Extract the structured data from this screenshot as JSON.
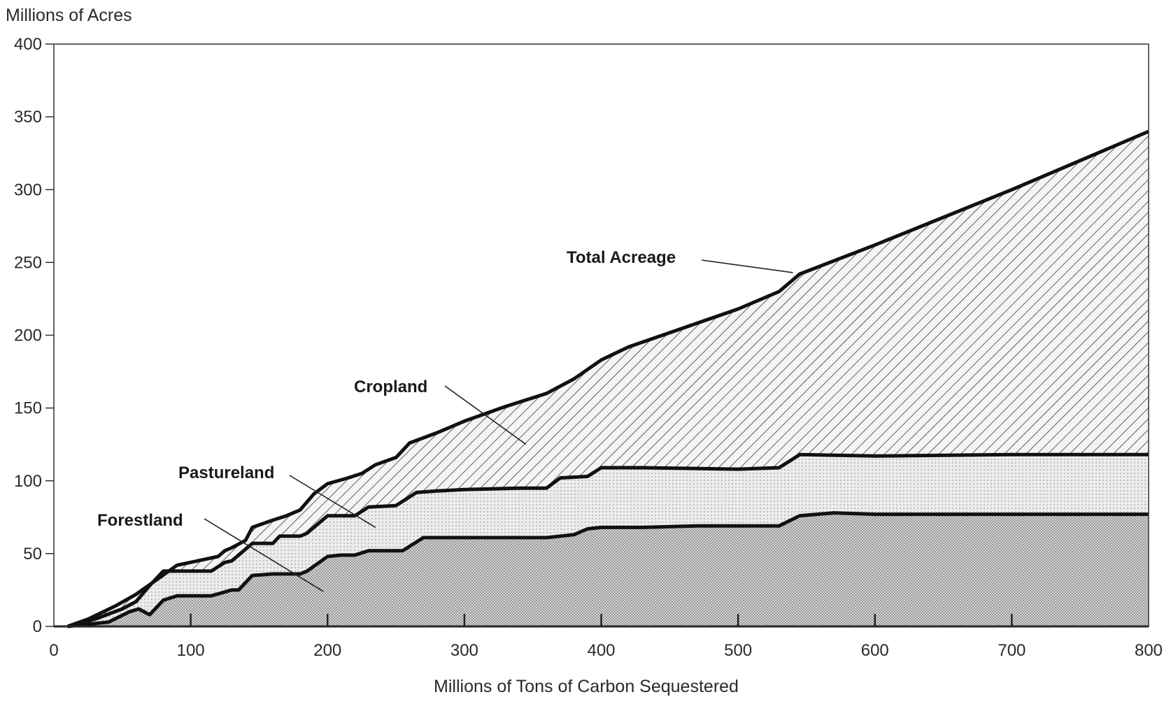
{
  "chart_data": {
    "type": "area",
    "stacked": true,
    "ylabel": "Millions of Acres",
    "xlabel": "Millions of Tons of Carbon Sequestered",
    "xlim": [
      0,
      800
    ],
    "ylim": [
      0,
      400
    ],
    "x_ticks": [
      0,
      100,
      200,
      300,
      400,
      500,
      600,
      700,
      800
    ],
    "y_ticks": [
      0,
      50,
      100,
      150,
      200,
      250,
      300,
      350,
      400
    ],
    "grid": false,
    "series": [
      {
        "name": "Forestland",
        "fill": "dots-dense",
        "points": [
          [
            10,
            0
          ],
          [
            40,
            3
          ],
          [
            55,
            10
          ],
          [
            62,
            12
          ],
          [
            70,
            8
          ],
          [
            80,
            18
          ],
          [
            90,
            21
          ],
          [
            100,
            21
          ],
          [
            115,
            21
          ],
          [
            130,
            25
          ],
          [
            135,
            25
          ],
          [
            145,
            35
          ],
          [
            160,
            36
          ],
          [
            180,
            36
          ],
          [
            185,
            38
          ],
          [
            200,
            48
          ],
          [
            210,
            49
          ],
          [
            220,
            49
          ],
          [
            230,
            52
          ],
          [
            240,
            52
          ],
          [
            255,
            52
          ],
          [
            270,
            61
          ],
          [
            290,
            61
          ],
          [
            300,
            61
          ],
          [
            340,
            61
          ],
          [
            360,
            61
          ],
          [
            380,
            63
          ],
          [
            390,
            67
          ],
          [
            400,
            68
          ],
          [
            430,
            68
          ],
          [
            470,
            69
          ],
          [
            500,
            69
          ],
          [
            530,
            69
          ],
          [
            545,
            76
          ],
          [
            570,
            78
          ],
          [
            600,
            77
          ],
          [
            700,
            77
          ],
          [
            800,
            77
          ]
        ]
      },
      {
        "name": "Pastureland",
        "fill": "dots-light",
        "points": [
          [
            10,
            0
          ],
          [
            30,
            5
          ],
          [
            50,
            12
          ],
          [
            60,
            17
          ],
          [
            70,
            28
          ],
          [
            80,
            38
          ],
          [
            90,
            38
          ],
          [
            100,
            38
          ],
          [
            115,
            38
          ],
          [
            125,
            44
          ],
          [
            130,
            45
          ],
          [
            145,
            57
          ],
          [
            160,
            57
          ],
          [
            165,
            62
          ],
          [
            180,
            62
          ],
          [
            185,
            64
          ],
          [
            200,
            76
          ],
          [
            220,
            76
          ],
          [
            230,
            82
          ],
          [
            250,
            83
          ],
          [
            265,
            92
          ],
          [
            280,
            93
          ],
          [
            300,
            94
          ],
          [
            340,
            95
          ],
          [
            360,
            95
          ],
          [
            370,
            102
          ],
          [
            390,
            103
          ],
          [
            400,
            109
          ],
          [
            430,
            109
          ],
          [
            500,
            108
          ],
          [
            530,
            109
          ],
          [
            545,
            118
          ],
          [
            600,
            117
          ],
          [
            700,
            118
          ],
          [
            800,
            118
          ]
        ]
      },
      {
        "name": "Cropland",
        "fill": "hatch",
        "points": []
      },
      {
        "name": "Total Acreage",
        "points": [
          [
            10,
            0
          ],
          [
            25,
            5
          ],
          [
            45,
            14
          ],
          [
            60,
            22
          ],
          [
            75,
            32
          ],
          [
            90,
            42
          ],
          [
            110,
            46
          ],
          [
            120,
            48
          ],
          [
            125,
            52
          ],
          [
            130,
            54
          ],
          [
            140,
            59
          ],
          [
            145,
            68
          ],
          [
            160,
            73
          ],
          [
            170,
            76
          ],
          [
            180,
            80
          ],
          [
            190,
            91
          ],
          [
            200,
            98
          ],
          [
            215,
            102
          ],
          [
            225,
            105
          ],
          [
            235,
            111
          ],
          [
            250,
            116
          ],
          [
            260,
            126
          ],
          [
            280,
            133
          ],
          [
            300,
            141
          ],
          [
            330,
            151
          ],
          [
            360,
            160
          ],
          [
            380,
            170
          ],
          [
            400,
            183
          ],
          [
            420,
            192
          ],
          [
            460,
            205
          ],
          [
            500,
            218
          ],
          [
            530,
            230
          ],
          [
            545,
            242
          ],
          [
            600,
            262
          ],
          [
            700,
            300
          ],
          [
            800,
            340
          ]
        ]
      }
    ],
    "annotations": [
      {
        "text": "Total Acreage",
        "target_series": "Total Acreage"
      },
      {
        "text": "Cropland",
        "target_series": "Cropland"
      },
      {
        "text": "Pastureland",
        "target_series": "Pastureland"
      },
      {
        "text": "Forestland",
        "target_series": "Forestland"
      }
    ]
  }
}
